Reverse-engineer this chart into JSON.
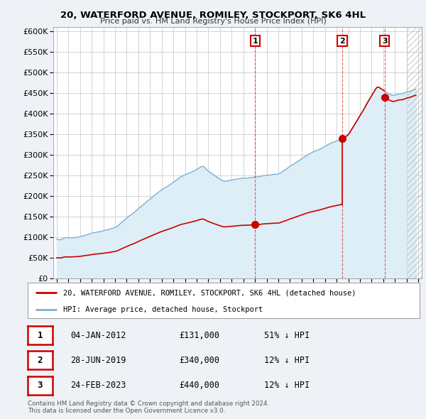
{
  "title": "20, WATERFORD AVENUE, ROMILEY, STOCKPORT, SK6 4HL",
  "subtitle": "Price paid vs. HM Land Registry's House Price Index (HPI)",
  "ytick_vals": [
    0,
    50000,
    100000,
    150000,
    200000,
    250000,
    300000,
    350000,
    400000,
    450000,
    500000,
    550000,
    600000
  ],
  "ylim": [
    0,
    610000
  ],
  "xlim_start": 1994.7,
  "xlim_end": 2026.3,
  "hpi_color": "#7ab0d4",
  "hpi_fill_color": "#ddeef7",
  "price_color": "#cc0000",
  "vline_color": "#cc0000",
  "sale1_x": 2012.02,
  "sale1_y": 131000,
  "sale2_x": 2019.49,
  "sale2_y": 340000,
  "sale3_x": 2023.12,
  "sale3_y": 440000,
  "legend_label1": "20, WATERFORD AVENUE, ROMILEY, STOCKPORT, SK6 4HL (detached house)",
  "legend_label2": "HPI: Average price, detached house, Stockport",
  "table_rows": [
    [
      "1",
      "04-JAN-2012",
      "£131,000",
      "51% ↓ HPI"
    ],
    [
      "2",
      "28-JUN-2019",
      "£340,000",
      "12% ↓ HPI"
    ],
    [
      "3",
      "24-FEB-2023",
      "£440,000",
      "12% ↓ HPI"
    ]
  ],
  "footnote": "Contains HM Land Registry data © Crown copyright and database right 2024.\nThis data is licensed under the Open Government Licence v3.0.",
  "background_color": "#eef2f7",
  "plot_bg_color": "#ffffff",
  "grid_color": "#cccccc",
  "hatch_start": 2025.0
}
